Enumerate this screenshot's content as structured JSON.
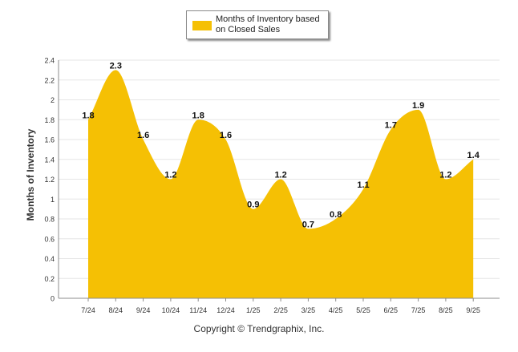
{
  "legend": {
    "label": "Months of Inventory based on Closed Sales"
  },
  "copyright": "Copyright © Trendgraphix, Inc.",
  "colors": {
    "area_fill": "#F5C004",
    "grid": "#e6e6e6",
    "axis_text": "#333333"
  },
  "chart_data": {
    "type": "area",
    "categories": [
      "7/24",
      "8/24",
      "9/24",
      "10/24",
      "11/24",
      "12/24",
      "1/25",
      "2/25",
      "3/25",
      "4/25",
      "5/25",
      "6/25",
      "7/25",
      "8/25",
      "9/25"
    ],
    "series": [
      {
        "name": "Months of Inventory based on Closed Sales",
        "values": [
          1.8,
          2.3,
          1.6,
          1.2,
          1.8,
          1.6,
          0.9,
          1.2,
          0.7,
          0.8,
          1.1,
          1.7,
          1.9,
          1.2,
          1.4
        ],
        "data_labels": [
          "1.8",
          "2.3",
          "1.6",
          "1.2",
          "1.8",
          "1.6",
          "0.9",
          "1.2",
          "0.7",
          "0.8",
          "1.1",
          "1.7",
          "1.9",
          "1.2",
          "1.4"
        ]
      }
    ],
    "ylabel": "Months of Inventory",
    "ylim": [
      0,
      2.4
    ],
    "yticks": [
      "0",
      "0.2",
      "0.4",
      "0.6",
      "0.8",
      "1",
      "1.2",
      "1.4",
      "1.6",
      "1.8",
      "2",
      "2.2",
      "2.4"
    ],
    "grid": true,
    "legend_position": "top-center",
    "smooth": true
  }
}
